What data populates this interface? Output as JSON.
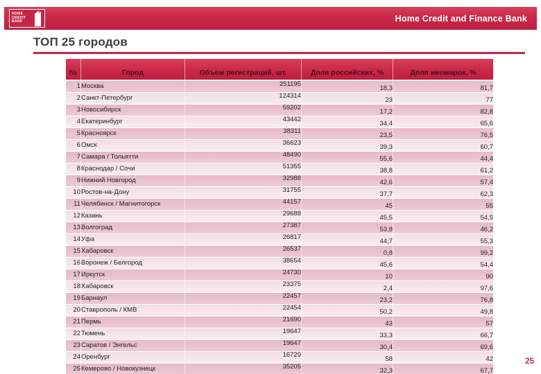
{
  "banner": {
    "bank_name": "Home Credit and Finance Bank",
    "logo_lines": [
      "HOME",
      "CREDIT",
      "BANK"
    ]
  },
  "title": "ТОП 25 городов",
  "page_number": "25",
  "colors": {
    "brand_red": "#CB2847",
    "title_rule_red": "#C32849",
    "header_text": "#470E20",
    "row_dark_pink": "#E6BAC4",
    "row_light_pink": "#F3DEE1",
    "page_number_red": "#C32849"
  },
  "table": {
    "columns": [
      "№",
      "Город",
      "Объем регистраций, шт.",
      "Доля российских, %",
      "Доля иномарок, %"
    ],
    "rows": [
      [
        "1",
        "Москва",
        "251195",
        "18,3",
        "81,7"
      ],
      [
        "2",
        "Санкт-Петербург",
        "124314",
        "23",
        "77"
      ],
      [
        "3",
        "Новосибирск",
        "59202",
        "17,2",
        "82,8"
      ],
      [
        "4",
        "Екатеринбург",
        "43442",
        "34,4",
        "65,6"
      ],
      [
        "5",
        "Красноярск",
        "38311",
        "23,5",
        "76,5"
      ],
      [
        "6",
        "Омск",
        "36623",
        "39,3",
        "60,7"
      ],
      [
        "7",
        "Самара / Тольятти",
        "48490",
        "55,6",
        "44,4"
      ],
      [
        "8",
        "Краснодар / Сочи",
        "51355",
        "38,8",
        "61,2"
      ],
      [
        "9",
        "Нижний Новгород",
        "32988",
        "42,6",
        "57,4"
      ],
      [
        "10",
        "Ростов-на-Дону",
        "31755",
        "37,7",
        "62,3"
      ],
      [
        "11",
        "Челябинск / Магнитогорск",
        "44157",
        "45",
        "55"
      ],
      [
        "12",
        "Казань",
        "29688",
        "45,5",
        "54,5"
      ],
      [
        "13",
        "Волгоград",
        "27387",
        "53,8",
        "46,2"
      ],
      [
        "14",
        "Уфа",
        "26817",
        "44,7",
        "55,3"
      ],
      [
        "15",
        "Хабаровск",
        "26537",
        "0,8",
        "99,2"
      ],
      [
        "16",
        "Воронеж / Белгород",
        "38654",
        "45,6",
        "54,4"
      ],
      [
        "17",
        "Иркутск",
        "24730",
        "10",
        "90"
      ],
      [
        "18",
        "Хабаровск",
        "23375",
        "2,4",
        "97,6"
      ],
      [
        "19",
        "Барнаул",
        "22457",
        "23,2",
        "76,8"
      ],
      [
        "20",
        "Ставрополь / КМВ",
        "22454",
        "50,2",
        "49,8"
      ],
      [
        "21",
        "Пермь",
        "21690",
        "43",
        "57"
      ],
      [
        "22",
        "Тюмень",
        "19647",
        "33,3",
        "66,7"
      ],
      [
        "23",
        "Саратов / Энгельс",
        "19647",
        "30,4",
        "69,6"
      ],
      [
        "24",
        "Оренбург",
        "16729",
        "58",
        "42"
      ],
      [
        "25",
        "Кемерово / Новокузнецк",
        "35205",
        "32,3",
        "67,7"
      ]
    ]
  }
}
